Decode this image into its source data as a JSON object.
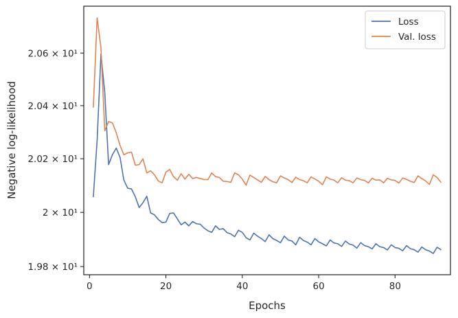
{
  "chart_data": {
    "type": "line",
    "title": "",
    "xlabel": "Epochs",
    "ylabel": "Negative log-likelihood",
    "xlim": [
      -1.5,
      94.5
    ],
    "ylim": [
      19.77,
      20.78
    ],
    "y_scale": "log",
    "grid": false,
    "legend_position": "top-right",
    "x_ticks": [
      0,
      20,
      40,
      60,
      80
    ],
    "x_tick_labels": [
      "0",
      "20",
      "40",
      "60",
      "80"
    ],
    "y_ticks": [
      19.8,
      20.0,
      20.2,
      20.4,
      20.6
    ],
    "y_tick_labels": [
      "1.98 × 10¹",
      "2 × 10¹",
      "2.02 × 10¹",
      "2.04 × 10¹",
      "2.06 × 10¹"
    ],
    "x": [
      1,
      2,
      3,
      4,
      5,
      6,
      7,
      8,
      9,
      10,
      11,
      12,
      13,
      14,
      15,
      16,
      17,
      18,
      19,
      20,
      21,
      22,
      23,
      24,
      25,
      26,
      27,
      28,
      29,
      30,
      31,
      32,
      33,
      34,
      35,
      36,
      37,
      38,
      39,
      40,
      41,
      42,
      43,
      44,
      45,
      46,
      47,
      48,
      49,
      50,
      51,
      52,
      53,
      54,
      55,
      56,
      57,
      58,
      59,
      60,
      61,
      62,
      63,
      64,
      65,
      66,
      67,
      68,
      69,
      70,
      71,
      72,
      73,
      74,
      75,
      76,
      77,
      78,
      79,
      80,
      81,
      82,
      83,
      84,
      85,
      86,
      87,
      88,
      89,
      90,
      91,
      92
    ],
    "series": [
      {
        "name": "Loss",
        "color": "#4c72b0",
        "values": [
          20.058,
          20.27,
          20.596,
          20.45,
          20.178,
          20.215,
          20.24,
          20.205,
          20.12,
          20.09,
          20.087,
          20.058,
          20.018,
          20.036,
          20.06,
          19.998,
          19.991,
          19.974,
          19.962,
          19.964,
          19.996,
          19.998,
          19.976,
          19.954,
          19.964,
          19.95,
          19.966,
          19.958,
          19.956,
          19.942,
          19.932,
          19.926,
          19.95,
          19.937,
          19.94,
          19.925,
          19.92,
          19.91,
          19.934,
          19.926,
          19.906,
          19.898,
          19.923,
          19.912,
          19.903,
          19.892,
          19.917,
          19.903,
          19.896,
          19.888,
          19.912,
          19.898,
          19.894,
          19.88,
          19.908,
          19.896,
          19.89,
          19.88,
          19.903,
          19.891,
          19.884,
          19.876,
          19.898,
          19.887,
          19.884,
          19.874,
          19.894,
          19.883,
          19.879,
          19.868,
          19.888,
          19.877,
          19.873,
          19.865,
          19.884,
          19.873,
          19.87,
          19.861,
          19.88,
          19.87,
          19.867,
          19.858,
          19.877,
          19.866,
          19.862,
          19.853,
          19.872,
          19.862,
          19.857,
          19.848,
          19.871,
          19.862
        ]
      },
      {
        "name": "Val. loss",
        "color": "#dd8452",
        "values": [
          20.394,
          20.735,
          20.62,
          20.305,
          20.34,
          20.335,
          20.298,
          20.25,
          20.215,
          20.222,
          20.225,
          20.176,
          20.178,
          20.2,
          20.147,
          20.155,
          20.14,
          20.117,
          20.11,
          20.15,
          20.16,
          20.133,
          20.12,
          20.144,
          20.124,
          20.142,
          20.126,
          20.13,
          20.126,
          20.122,
          20.122,
          20.147,
          20.133,
          20.13,
          20.116,
          20.115,
          20.112,
          20.147,
          20.14,
          20.124,
          20.101,
          20.139,
          20.13,
          20.121,
          20.112,
          20.134,
          20.122,
          20.114,
          20.11,
          20.136,
          20.128,
          20.122,
          20.111,
          20.131,
          20.122,
          20.118,
          20.11,
          20.132,
          20.124,
          20.116,
          20.103,
          20.132,
          20.124,
          20.12,
          20.11,
          20.129,
          20.12,
          20.118,
          20.11,
          20.128,
          20.122,
          20.119,
          20.11,
          20.127,
          20.12,
          20.121,
          20.11,
          20.127,
          20.121,
          20.119,
          20.109,
          20.128,
          20.123,
          20.116,
          20.111,
          20.136,
          20.126,
          20.117,
          20.104,
          20.14,
          20.13,
          20.112
        ]
      }
    ]
  }
}
